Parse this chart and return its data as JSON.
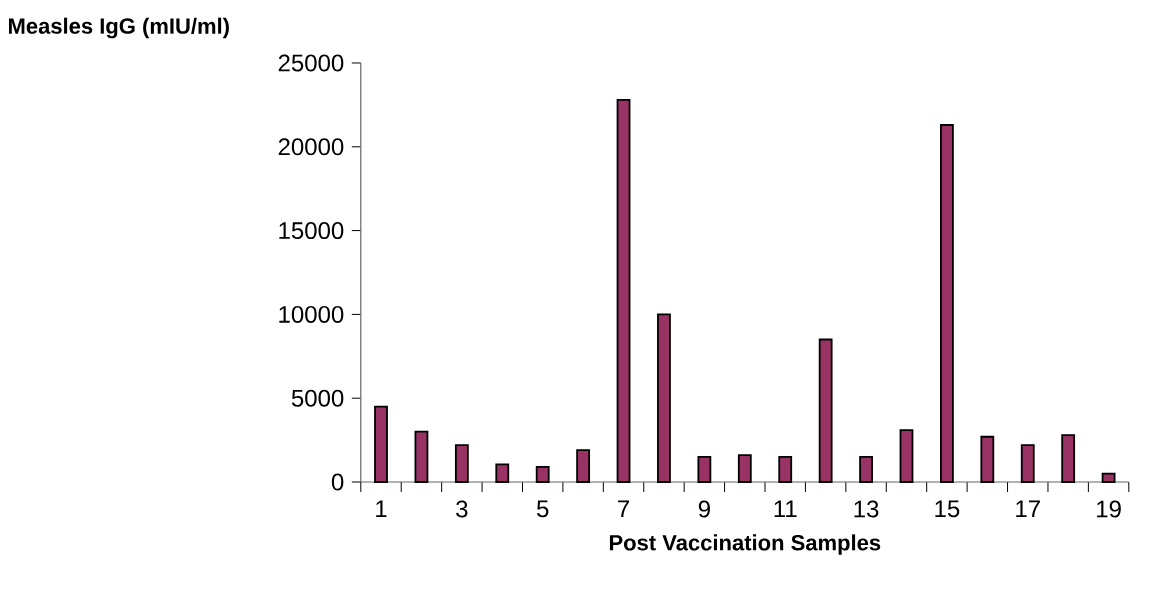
{
  "chart_data": {
    "type": "bar",
    "ylabel": "Measles IgG (mIU/ml)",
    "xlabel": "Post Vaccination Samples",
    "categories": [
      "1",
      null,
      "3",
      null,
      "5",
      null,
      "7",
      null,
      "9",
      null,
      "11",
      null,
      "13",
      null,
      "15",
      null,
      "17",
      null,
      "19"
    ],
    "values": [
      4500,
      3000,
      2200,
      1050,
      900,
      1900,
      22800,
      10000,
      1500,
      1600,
      1500,
      8500,
      1500,
      3100,
      21300,
      2700,
      2200,
      2800,
      500
    ],
    "color": "#993366",
    "ylim": [
      0,
      25000
    ],
    "yticks": [
      0,
      5000,
      10000,
      15000,
      20000,
      25000
    ],
    "grid": false
  }
}
